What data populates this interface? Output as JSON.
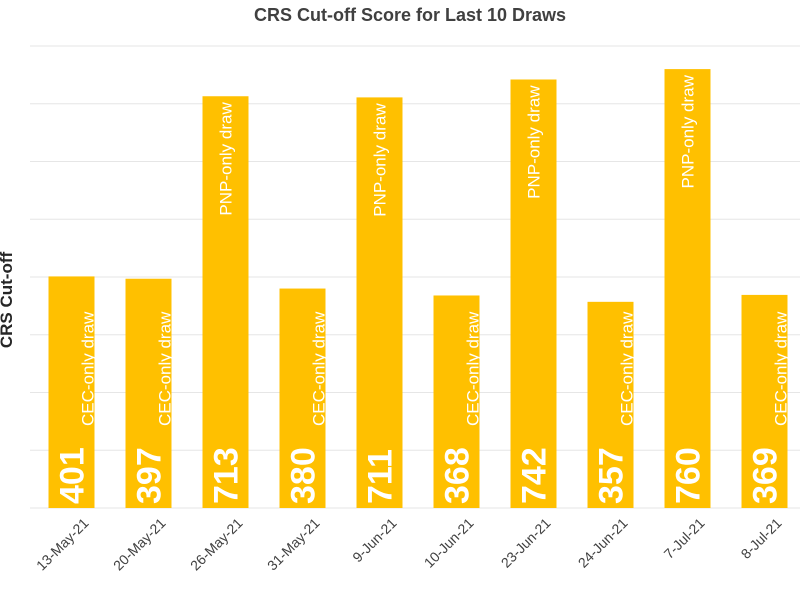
{
  "chart_data": {
    "type": "bar",
    "title": "CRS Cut-off Score for Last 10 Draws",
    "xlabel": "",
    "ylabel": "CRS Cut-off",
    "ylim": [
      0,
      800
    ],
    "grid": true,
    "bar_color": "#FFC000",
    "categories": [
      "13-May-21",
      "20-May-21",
      "26-May-21",
      "31-May-21",
      "9-Jun-21",
      "10-Jun-21",
      "23-Jun-21",
      "24-Jun-21",
      "7-Jul-21",
      "8-Jul-21"
    ],
    "values": [
      401,
      397,
      713,
      380,
      711,
      368,
      742,
      357,
      760,
      369
    ],
    "annotations": [
      "CEC-only draw",
      "CEC-only draw",
      "PNP-only draw",
      "CEC-only draw",
      "PNP-only draw",
      "CEC-only draw",
      "PNP-only draw",
      "CEC-only draw",
      "PNP-only draw",
      "CEC-only draw"
    ]
  }
}
